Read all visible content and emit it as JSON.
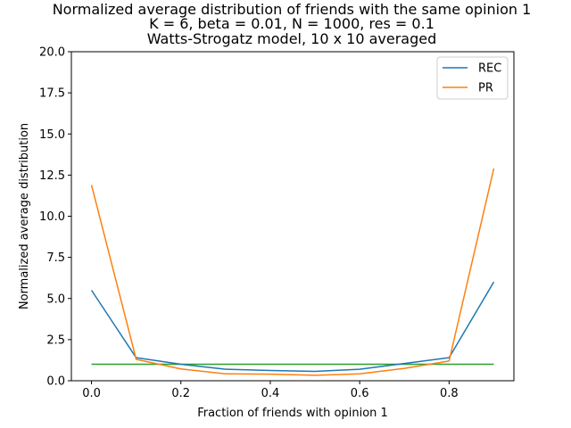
{
  "chart_data": {
    "type": "line",
    "title_lines": [
      "Normalized average distribution of friends with the same opinion 1",
      "K = 6, beta = 0.01, N = 1000, res = 0.1",
      "Watts-Strogatz model, 10 x 10 averaged"
    ],
    "xlabel": "Fraction of friends with opinion 1",
    "ylabel": "Normalized average distribution",
    "xlim": [
      -0.045,
      0.945
    ],
    "ylim": [
      0,
      20
    ],
    "xticks": [
      0.0,
      0.2,
      0.4,
      0.6,
      0.8
    ],
    "xtick_labels": [
      "0.0",
      "0.2",
      "0.4",
      "0.6",
      "0.8"
    ],
    "yticks": [
      0,
      2.5,
      5,
      7.5,
      10,
      12.5,
      15,
      17.5,
      20
    ],
    "ytick_labels": [
      "0.0",
      "2.5",
      "5.0",
      "7.5",
      "10.0",
      "12.5",
      "15.0",
      "17.5",
      "20.0"
    ],
    "grid": false,
    "legend_position": "top-right",
    "x": [
      0.0,
      0.1,
      0.2,
      0.3,
      0.4,
      0.5,
      0.6,
      0.7,
      0.8,
      0.9
    ],
    "series": [
      {
        "name": "REC",
        "color": "#1f77b4",
        "values": [
          5.5,
          1.4,
          1.0,
          0.7,
          0.62,
          0.57,
          0.7,
          1.05,
          1.4,
          6.0
        ],
        "in_legend": true
      },
      {
        "name": "PR",
        "color": "#ff7f0e",
        "values": [
          11.9,
          1.3,
          0.72,
          0.42,
          0.4,
          0.33,
          0.42,
          0.75,
          1.2,
          12.9
        ],
        "in_legend": true
      },
      {
        "color": "#2ca02c",
        "values": [
          1.0,
          1.0,
          1.0,
          1.0,
          1.0,
          1.0,
          1.0,
          1.0,
          1.0,
          1.0
        ],
        "in_legend": false
      }
    ]
  }
}
